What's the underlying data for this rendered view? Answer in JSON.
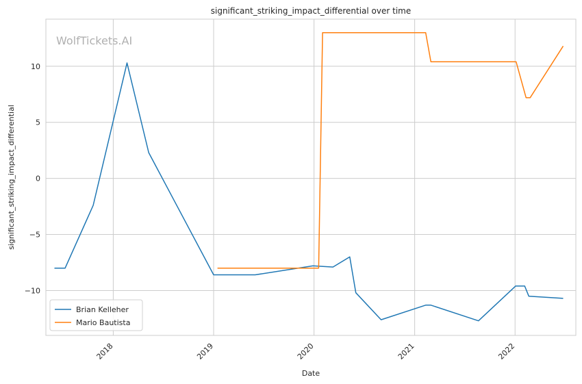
{
  "chart_data": {
    "type": "line",
    "title": "significant_striking_impact_differential over time",
    "xlabel": "Date",
    "ylabel": "significant_striking_impact_differential",
    "watermark": "WolfTickets.AI",
    "x_ticks": [
      "2018",
      "2019",
      "2020",
      "2021",
      "2022"
    ],
    "y_ticks": [
      "10",
      "5",
      "0",
      "−5",
      "−10"
    ],
    "ylim": [
      -14,
      14.2
    ],
    "xlim": [
      "2017-05-01",
      "2022-08-10"
    ],
    "grid": true,
    "legend_position": "lower-left",
    "series": [
      {
        "name": "Brian Kelleher",
        "color": "#1f77b4",
        "points": [
          [
            "2017-06-01",
            -8.0
          ],
          [
            "2017-07-10",
            -8.0
          ],
          [
            "2017-10-20",
            -2.4
          ],
          [
            "2018-02-20",
            10.3
          ],
          [
            "2018-05-10",
            2.3
          ],
          [
            "2019-01-01",
            -8.6
          ],
          [
            "2019-06-01",
            -8.6
          ],
          [
            "2019-12-28",
            -7.8
          ],
          [
            "2020-03-10",
            -7.9
          ],
          [
            "2020-05-10",
            -7.0
          ],
          [
            "2020-06-01",
            -10.2
          ],
          [
            "2020-09-01",
            -12.6
          ],
          [
            "2021-02-10",
            -11.3
          ],
          [
            "2021-03-01",
            -11.3
          ],
          [
            "2021-08-21",
            -12.7
          ],
          [
            "2022-01-03",
            -9.6
          ],
          [
            "2022-02-05",
            -9.6
          ],
          [
            "2022-02-20",
            -10.5
          ],
          [
            "2022-06-25",
            -10.7
          ]
        ]
      },
      {
        "name": "Mario Bautista",
        "color": "#ff7f0e",
        "points": [
          [
            "2019-01-15",
            -8.0
          ],
          [
            "2020-01-01",
            -8.0
          ],
          [
            "2020-01-18",
            -8.0
          ],
          [
            "2020-02-01",
            13.0
          ],
          [
            "2021-02-10",
            13.0
          ],
          [
            "2021-03-01",
            10.4
          ],
          [
            "2022-01-05",
            10.4
          ],
          [
            "2022-02-10",
            7.2
          ],
          [
            "2022-02-25",
            7.2
          ],
          [
            "2022-06-25",
            11.8
          ]
        ]
      }
    ]
  }
}
